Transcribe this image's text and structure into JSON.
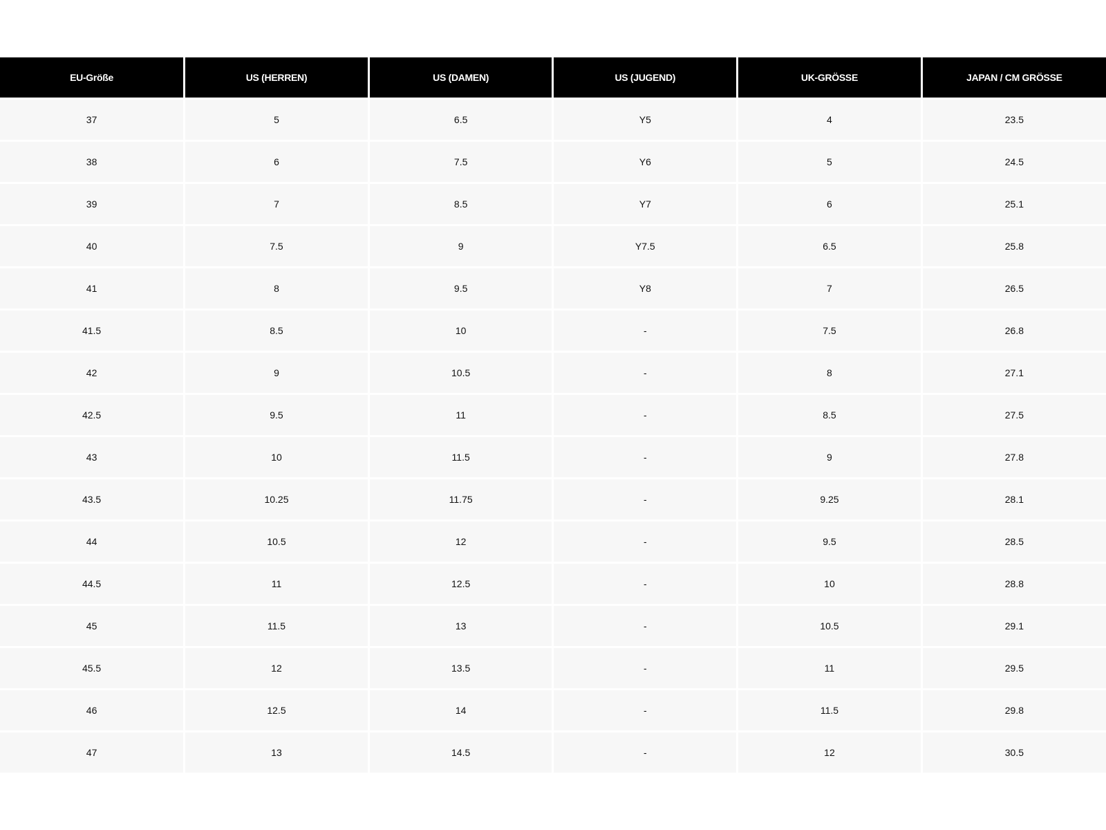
{
  "table": {
    "headers": [
      "EU-Größe",
      "US (HERREN)",
      "US (DAMEN)",
      "US (JUGEND)",
      "UK-GRÖSSE",
      "JAPAN / CM GRÖSSE"
    ],
    "rows": [
      [
        "37",
        "5",
        "6.5",
        "Y5",
        "4",
        "23.5"
      ],
      [
        "38",
        "6",
        "7.5",
        "Y6",
        "5",
        "24.5"
      ],
      [
        "39",
        "7",
        "8.5",
        "Y7",
        "6",
        "25.1"
      ],
      [
        "40",
        "7.5",
        "9",
        "Y7.5",
        "6.5",
        "25.8"
      ],
      [
        "41",
        "8",
        "9.5",
        "Y8",
        "7",
        "26.5"
      ],
      [
        "41.5",
        "8.5",
        "10",
        "-",
        "7.5",
        "26.8"
      ],
      [
        "42",
        "9",
        "10.5",
        "-",
        "8",
        "27.1"
      ],
      [
        "42.5",
        "9.5",
        "11",
        "-",
        "8.5",
        "27.5"
      ],
      [
        "43",
        "10",
        "11.5",
        "-",
        "9",
        "27.8"
      ],
      [
        "43.5",
        "10.25",
        "11.75",
        "-",
        "9.25",
        "28.1"
      ],
      [
        "44",
        "10.5",
        "12",
        "-",
        "9.5",
        "28.5"
      ],
      [
        "44.5",
        "11",
        "12.5",
        "-",
        "10",
        "28.8"
      ],
      [
        "45",
        "11.5",
        "13",
        "-",
        "10.5",
        "29.1"
      ],
      [
        "45.5",
        "12",
        "13.5",
        "-",
        "11",
        "29.5"
      ],
      [
        "46",
        "12.5",
        "14",
        "-",
        "11.5",
        "29.8"
      ],
      [
        "47",
        "13",
        "14.5",
        "-",
        "12",
        "30.5"
      ]
    ]
  },
  "colors": {
    "header_bg": "#000000",
    "header_text": "#ffffff",
    "cell_bg": "#f7f7f7"
  }
}
